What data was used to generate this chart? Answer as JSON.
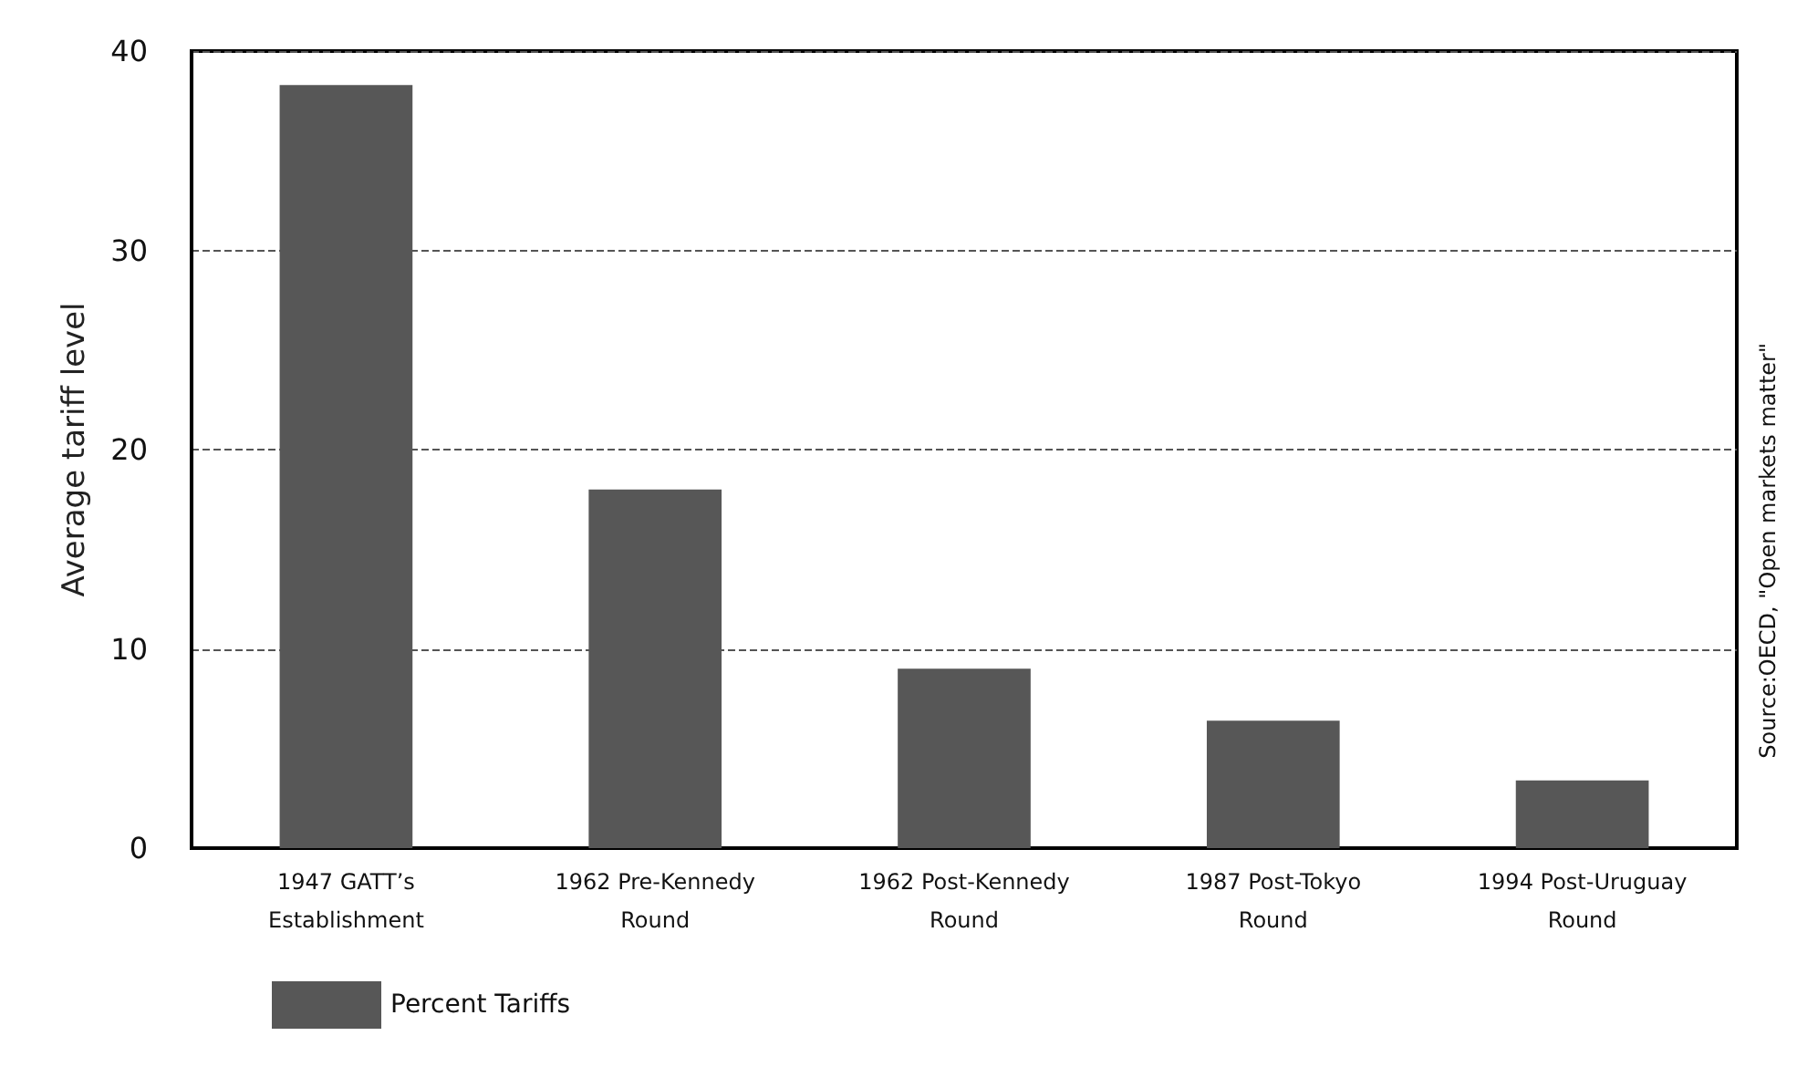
{
  "chart_data": {
    "type": "bar",
    "ylabel": "Average tariff level",
    "categories": [
      "1947 GATT’s\nEstablishment",
      "1962 Pre-Kennedy\nRound",
      "1962 Post-Kennedy\nRound",
      "1987 Post-Tokyo\nRound",
      "1994 Post-Uruguay\nRound"
    ],
    "series": [
      {
        "name": "Percent Tariffs",
        "color": "#575757",
        "values": [
          38.3,
          18.0,
          9.0,
          6.4,
          3.4
        ]
      }
    ],
    "ylim": [
      0,
      40
    ],
    "yticks": [
      0,
      10,
      20,
      30,
      40
    ],
    "grid": "y",
    "line_style": "dashed",
    "legend": "bottom left",
    "annotations": [
      "Source:OECD, \"Open markets matter\""
    ]
  }
}
